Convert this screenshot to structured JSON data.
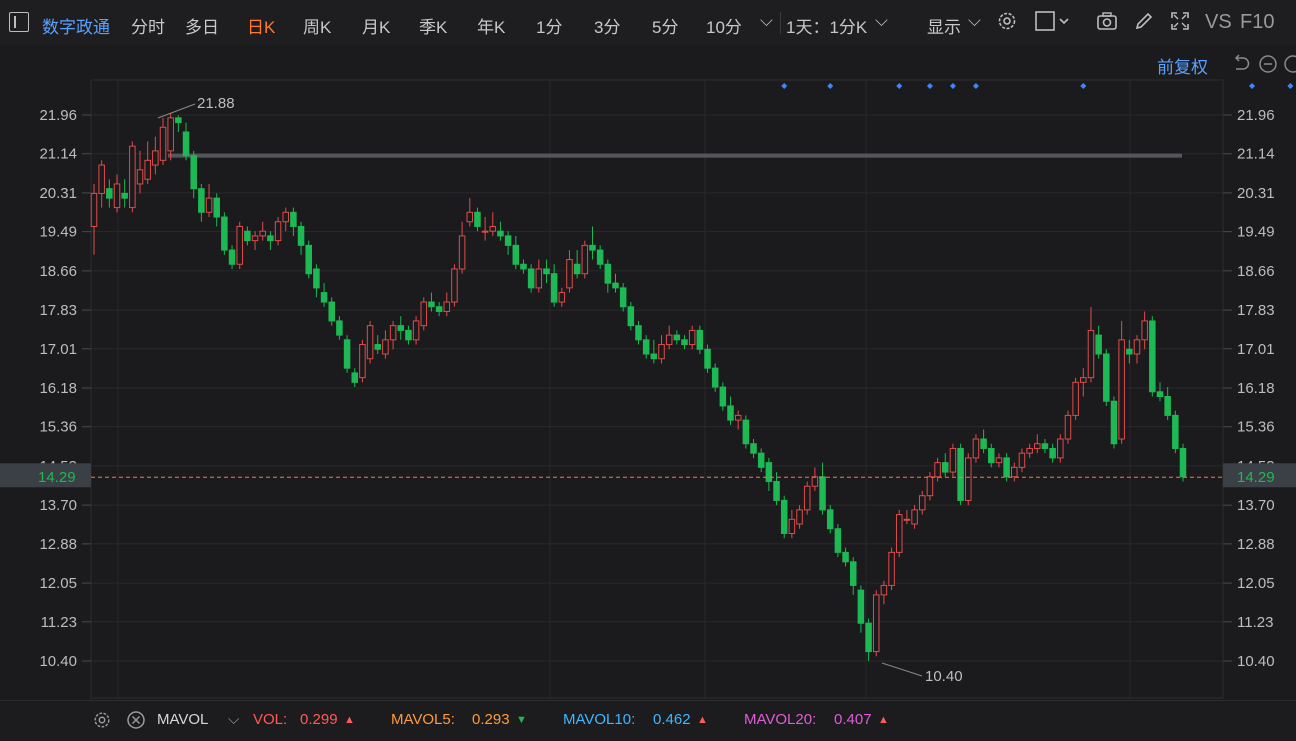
{
  "toolbar": {
    "stock_name": "数字政通",
    "periods": [
      "分时",
      "多日",
      "日K",
      "周K",
      "月K",
      "季K",
      "年K",
      "1分",
      "3分",
      "5分",
      "10分"
    ],
    "active_period": "日K",
    "period_selector": "1天：1分K",
    "display_label": "显示",
    "vs_label": "VS",
    "f10_label": "F10"
  },
  "chart": {
    "adjust_label": "前复权",
    "current_price_label": "14.29",
    "high_annotation": "21.88",
    "low_annotation": "10.40",
    "colors": {
      "up": "#e04b4b",
      "down": "#1db954",
      "current": "#ff7a2f",
      "marker": "#3d86ff"
    }
  },
  "chart_data": {
    "type": "candlestick",
    "y_ticks": [
      "21.96",
      "21.14",
      "20.31",
      "19.49",
      "18.66",
      "17.83",
      "17.01",
      "16.18",
      "15.36",
      "14.53",
      "13.70",
      "12.88",
      "12.05",
      "11.23",
      "10.40"
    ],
    "ylim": [
      10.0,
      22.4
    ],
    "current_price": 14.29,
    "resistance_level": 21.1,
    "event_markers_at_candle_index": [
      90,
      96,
      105,
      109,
      112,
      115,
      129,
      151,
      156
    ],
    "candles": [
      [
        19.6,
        20.3,
        20.5,
        19.0
      ],
      [
        20.3,
        20.9,
        21.0,
        20.0
      ],
      [
        20.4,
        20.2,
        20.6,
        20.0
      ],
      [
        20.0,
        20.5,
        20.7,
        19.9
      ],
      [
        20.3,
        20.2,
        20.6,
        20.0
      ],
      [
        20.0,
        21.3,
        21.4,
        19.9
      ],
      [
        20.5,
        20.8,
        21.2,
        20.3
      ],
      [
        20.6,
        21.0,
        21.4,
        20.5
      ],
      [
        20.9,
        21.2,
        21.5,
        20.7
      ],
      [
        21.0,
        21.7,
        21.9,
        20.9
      ],
      [
        21.2,
        21.9,
        22.0,
        21.0
      ],
      [
        21.9,
        21.8,
        21.95,
        21.6
      ],
      [
        21.6,
        21.1,
        21.8,
        21.0
      ],
      [
        21.1,
        20.4,
        21.2,
        20.2
      ],
      [
        20.4,
        19.9,
        20.5,
        19.7
      ],
      [
        19.9,
        20.2,
        20.5,
        19.8
      ],
      [
        20.2,
        19.8,
        20.3,
        19.6
      ],
      [
        19.8,
        19.1,
        19.9,
        19.0
      ],
      [
        19.1,
        18.8,
        19.2,
        18.7
      ],
      [
        18.8,
        19.6,
        19.7,
        18.7
      ],
      [
        19.5,
        19.3,
        19.6,
        19.2
      ],
      [
        19.3,
        19.4,
        19.5,
        19.1
      ],
      [
        19.4,
        19.5,
        19.7,
        19.3
      ],
      [
        19.4,
        19.3,
        19.5,
        19.1
      ],
      [
        19.3,
        19.7,
        19.8,
        19.2
      ],
      [
        19.7,
        19.9,
        20.0,
        19.5
      ],
      [
        19.9,
        19.6,
        20.0,
        19.4
      ],
      [
        19.6,
        19.2,
        19.7,
        19.0
      ],
      [
        19.2,
        18.6,
        19.3,
        18.5
      ],
      [
        18.7,
        18.3,
        18.8,
        18.1
      ],
      [
        18.2,
        18.0,
        18.4,
        17.9
      ],
      [
        18.0,
        17.6,
        18.1,
        17.5
      ],
      [
        17.6,
        17.3,
        17.7,
        17.2
      ],
      [
        17.2,
        16.6,
        17.3,
        16.5
      ],
      [
        16.5,
        16.3,
        16.6,
        16.2
      ],
      [
        16.4,
        17.1,
        17.2,
        16.3
      ],
      [
        16.8,
        17.5,
        17.6,
        16.7
      ],
      [
        17.1,
        17.0,
        17.3,
        16.9
      ],
      [
        16.9,
        17.2,
        17.4,
        16.8
      ],
      [
        17.2,
        17.5,
        17.6,
        17.0
      ],
      [
        17.5,
        17.4,
        17.7,
        17.2
      ],
      [
        17.4,
        17.2,
        17.5,
        17.1
      ],
      [
        17.2,
        17.6,
        17.7,
        17.1
      ],
      [
        17.5,
        18.0,
        18.1,
        17.4
      ],
      [
        18.0,
        17.9,
        18.2,
        17.8
      ],
      [
        17.9,
        17.8,
        18.0,
        17.7
      ],
      [
        17.8,
        18.0,
        18.2,
        17.7
      ],
      [
        18.0,
        18.7,
        18.8,
        17.9
      ],
      [
        18.7,
        19.4,
        19.7,
        18.6
      ],
      [
        19.7,
        19.9,
        20.2,
        19.6
      ],
      [
        19.9,
        19.6,
        20.0,
        19.5
      ],
      [
        19.5,
        19.5,
        19.8,
        19.3
      ],
      [
        19.5,
        19.6,
        19.9,
        19.4
      ],
      [
        19.5,
        19.4,
        19.7,
        19.3
      ],
      [
        19.4,
        19.2,
        19.5,
        19.0
      ],
      [
        19.2,
        18.8,
        19.4,
        18.7
      ],
      [
        18.8,
        18.7,
        18.9,
        18.6
      ],
      [
        18.7,
        18.3,
        18.8,
        18.2
      ],
      [
        18.3,
        18.7,
        18.9,
        18.2
      ],
      [
        18.7,
        18.6,
        18.9,
        18.4
      ],
      [
        18.6,
        18.0,
        18.8,
        17.9
      ],
      [
        18.0,
        18.2,
        18.3,
        17.9
      ],
      [
        18.3,
        18.9,
        19.1,
        18.2
      ],
      [
        18.8,
        18.6,
        19.1,
        18.5
      ],
      [
        18.6,
        19.2,
        19.3,
        18.5
      ],
      [
        19.2,
        19.1,
        19.6,
        18.9
      ],
      [
        19.1,
        18.8,
        19.2,
        18.7
      ],
      [
        18.8,
        18.4,
        18.9,
        18.2
      ],
      [
        18.4,
        18.3,
        18.6,
        18.2
      ],
      [
        18.3,
        17.9,
        18.4,
        17.8
      ],
      [
        17.9,
        17.5,
        18.0,
        17.4
      ],
      [
        17.5,
        17.2,
        17.6,
        17.1
      ],
      [
        17.2,
        16.9,
        17.3,
        16.8
      ],
      [
        16.9,
        16.8,
        17.2,
        16.7
      ],
      [
        16.8,
        17.1,
        17.3,
        16.7
      ],
      [
        17.1,
        17.3,
        17.5,
        17.0
      ],
      [
        17.3,
        17.2,
        17.4,
        17.1
      ],
      [
        17.2,
        17.1,
        17.3,
        17.0
      ],
      [
        17.1,
        17.4,
        17.5,
        17.0
      ],
      [
        17.4,
        17.0,
        17.5,
        16.9
      ],
      [
        17.0,
        16.6,
        17.1,
        16.5
      ],
      [
        16.6,
        16.2,
        16.7,
        16.1
      ],
      [
        16.2,
        15.8,
        16.3,
        15.7
      ],
      [
        15.8,
        15.5,
        16.0,
        15.4
      ],
      [
        15.5,
        15.6,
        15.7,
        15.3
      ],
      [
        15.5,
        15.0,
        15.6,
        14.9
      ],
      [
        15.0,
        14.8,
        15.1,
        14.7
      ],
      [
        14.8,
        14.5,
        14.9,
        14.4
      ],
      [
        14.6,
        14.2,
        14.7,
        14.0
      ],
      [
        14.2,
        13.8,
        14.4,
        13.7
      ],
      [
        13.8,
        13.1,
        13.9,
        13.0
      ],
      [
        13.1,
        13.4,
        13.6,
        13.0
      ],
      [
        13.3,
        13.6,
        13.7,
        13.2
      ],
      [
        13.6,
        14.1,
        14.2,
        13.5
      ],
      [
        14.1,
        14.3,
        14.5,
        14.0
      ],
      [
        14.3,
        13.6,
        14.6,
        13.5
      ],
      [
        13.6,
        13.2,
        13.7,
        13.1
      ],
      [
        13.2,
        12.7,
        13.3,
        12.6
      ],
      [
        12.7,
        12.5,
        12.8,
        12.4
      ],
      [
        12.5,
        12.0,
        12.6,
        11.8
      ],
      [
        11.9,
        11.2,
        12.0,
        11.0
      ],
      [
        11.2,
        10.6,
        11.3,
        10.4
      ],
      [
        10.6,
        11.8,
        11.9,
        10.5
      ],
      [
        11.8,
        12.0,
        12.1,
        11.6
      ],
      [
        12.0,
        12.7,
        12.8,
        11.9
      ],
      [
        12.7,
        13.5,
        13.6,
        12.6
      ],
      [
        13.4,
        13.4,
        13.6,
        13.3
      ],
      [
        13.3,
        13.6,
        13.7,
        13.2
      ],
      [
        13.6,
        13.9,
        14.0,
        13.5
      ],
      [
        13.9,
        14.3,
        14.4,
        13.8
      ],
      [
        14.3,
        14.6,
        14.7,
        14.2
      ],
      [
        14.6,
        14.4,
        14.8,
        14.3
      ],
      [
        14.4,
        14.9,
        15.0,
        14.3
      ],
      [
        14.9,
        13.8,
        15.0,
        13.7
      ],
      [
        13.8,
        14.7,
        14.8,
        13.7
      ],
      [
        14.7,
        15.1,
        15.2,
        14.6
      ],
      [
        15.1,
        14.9,
        15.3,
        14.8
      ],
      [
        14.9,
        14.6,
        15.0,
        14.5
      ],
      [
        14.6,
        14.7,
        14.8,
        14.5
      ],
      [
        14.7,
        14.3,
        14.8,
        14.2
      ],
      [
        14.3,
        14.5,
        14.6,
        14.2
      ],
      [
        14.5,
        14.8,
        14.9,
        14.4
      ],
      [
        14.8,
        14.9,
        15.0,
        14.7
      ],
      [
        14.9,
        15.0,
        15.2,
        14.8
      ],
      [
        15.0,
        14.9,
        15.1,
        14.8
      ],
      [
        14.9,
        14.7,
        15.0,
        14.6
      ],
      [
        14.7,
        15.1,
        15.2,
        14.6
      ],
      [
        15.1,
        15.6,
        15.7,
        15.0
      ],
      [
        15.6,
        16.3,
        16.4,
        15.5
      ],
      [
        16.3,
        16.4,
        16.6,
        16.0
      ],
      [
        16.4,
        17.4,
        17.9,
        16.3
      ],
      [
        17.3,
        16.9,
        17.5,
        16.8
      ],
      [
        16.9,
        15.9,
        17.0,
        15.8
      ],
      [
        15.9,
        15.0,
        16.0,
        14.9
      ],
      [
        15.1,
        17.2,
        17.6,
        15.0
      ],
      [
        17.0,
        16.9,
        17.2,
        16.7
      ],
      [
        16.9,
        17.2,
        17.3,
        16.7
      ],
      [
        17.2,
        17.6,
        17.8,
        17.0
      ],
      [
        17.6,
        16.1,
        17.7,
        16.0
      ],
      [
        16.1,
        16.0,
        16.3,
        15.9
      ],
      [
        16.0,
        15.6,
        16.2,
        15.5
      ],
      [
        15.6,
        14.9,
        15.7,
        14.8
      ],
      [
        14.9,
        14.3,
        15.0,
        14.2
      ]
    ]
  },
  "bottom": {
    "indicator": "MAVOL",
    "vol_label": "VOL:",
    "vol_value": "0.299",
    "mavol5_label": "MAVOL5:",
    "mavol5_value": "0.293",
    "mavol10_label": "MAVOL10:",
    "mavol10_value": "0.462",
    "mavol20_label": "MAVOL20:",
    "mavol20_value": "0.407",
    "colors": {
      "vol": "#ff5a5a",
      "mavol5": "#ff9a3c",
      "mavol10": "#3fb6ff",
      "mavol20": "#e05cd6"
    }
  }
}
